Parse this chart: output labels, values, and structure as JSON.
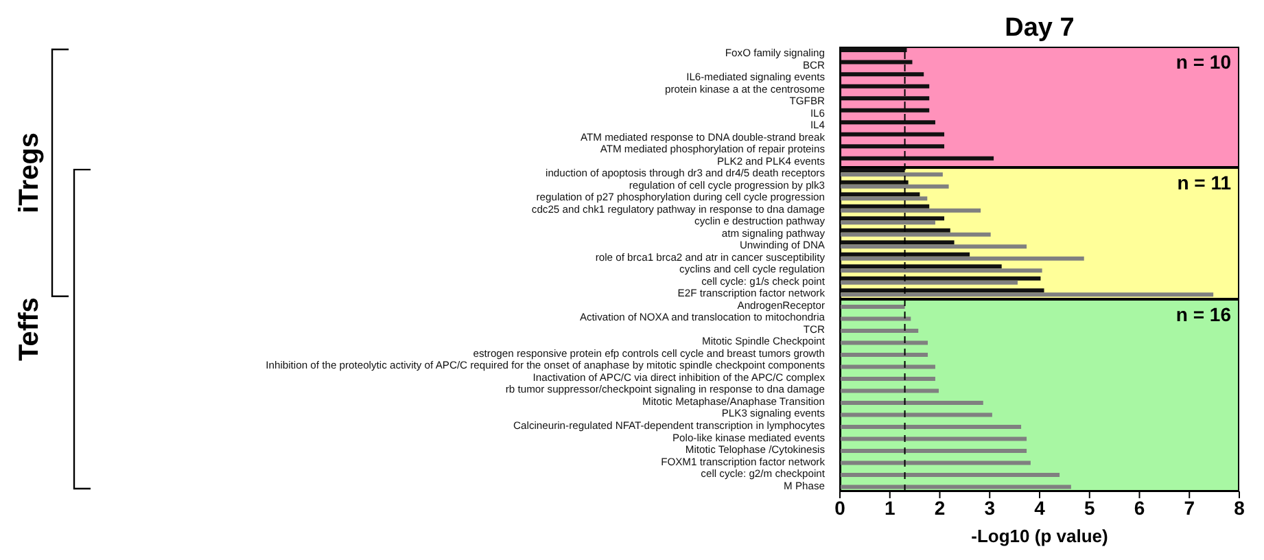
{
  "chart_data": {
    "type": "bar",
    "orientation": "horizontal",
    "title": "Day 7",
    "xlabel": "-Log10 (p value)",
    "categories": [
      "FoxO family signaling",
      "BCR",
      "IL6-mediated signaling events",
      "protein kinase a at the centrosome",
      "TGFBR",
      "IL6",
      "IL4",
      "ATM mediated response to DNA double-strand break",
      "ATM mediated phosphorylation of repair proteins",
      "PLK2 and PLK4 events",
      "induction of apoptosis through dr3 and dr4/5 death receptors",
      "regulation of cell cycle progression by plk3",
      "regulation of p27 phosphorylation during cell cycle progression",
      "cdc25 and chk1 regulatory pathway in response to dna damage",
      "cyclin e destruction pathway",
      "atm signaling pathway",
      "Unwinding of DNA",
      "role of brca1 brca2 and atr in cancer susceptibility",
      "cyclins and cell cycle regulation",
      "cell cycle: g1/s check point",
      "E2F transcription factor network",
      "AndrogenReceptor",
      "Activation of NOXA and translocation to mitochondria",
      "TCR",
      "Mitotic Spindle Checkpoint",
      "estrogen responsive protein efp controls cell cycle and breast tumors growth",
      "Inhibition of the proteolytic activity of APC/C required for the onset of anaphase by mitotic spindle checkpoint components",
      "Inactivation of APC/C via direct inhibition of the APC/C complex",
      "rb tumor suppressor/checkpoint signaling in response to dna damage",
      "Mitotic Metaphase/Anaphase Transition",
      "PLK3 signaling events",
      "Calcineurin-regulated NFAT-dependent transcription in lymphocytes",
      "Polo-like kinase mediated events",
      "Mitotic Telophase /Cytokinesis",
      "FOXM1 transcription factor network",
      "cell cycle: g2/m checkpoint",
      "M Phase"
    ],
    "series": [
      {
        "color": "#111111",
        "values": [
          1.34,
          1.45,
          1.68,
          1.79,
          1.79,
          1.79,
          1.91,
          2.09,
          2.09,
          3.08,
          1.3,
          1.37,
          1.6,
          1.79,
          2.09,
          2.21,
          2.29,
          2.6,
          3.24,
          4.02,
          4.09,
          null,
          null,
          null,
          null,
          null,
          null,
          null,
          null,
          null,
          null,
          null,
          null,
          null,
          null,
          null,
          null
        ]
      },
      {
        "color": "#808080",
        "values": [
          null,
          null,
          null,
          null,
          null,
          null,
          null,
          null,
          null,
          null,
          2.06,
          2.18,
          1.75,
          2.82,
          1.91,
          3.02,
          3.74,
          4.89,
          4.05,
          3.56,
          7.48,
          1.3,
          1.42,
          1.57,
          1.76,
          1.76,
          1.91,
          1.91,
          1.98,
          2.87,
          3.05,
          3.63,
          3.74,
          3.74,
          3.82,
          4.4,
          4.63
        ]
      }
    ],
    "xlim": [
      0,
      8
    ],
    "xticks": [
      0,
      1,
      2,
      3,
      4,
      5,
      6,
      7,
      8
    ],
    "grid": false,
    "legend": false,
    "ref_lines": [
      {
        "axis": "x",
        "value": 1.3,
        "color": "#000000",
        "line_style": "dashed"
      }
    ],
    "bands": [
      {
        "axis": "y",
        "from": "FoxO family signaling",
        "to": "PLK2 and PLK4 events",
        "label": "n = 10",
        "color": "#ff92bb"
      },
      {
        "axis": "y",
        "from": "induction of apoptosis through dr3 and dr4/5 death receptors",
        "to": "E2F transcription factor network",
        "label": "n = 11",
        "color": "#ffff99"
      },
      {
        "axis": "y",
        "from": "AndrogenReceptor",
        "to": "M Phase",
        "label": "n = 16",
        "color": "#a8f7a3"
      }
    ],
    "annotations": [
      "iTregs",
      "Teffs"
    ]
  }
}
